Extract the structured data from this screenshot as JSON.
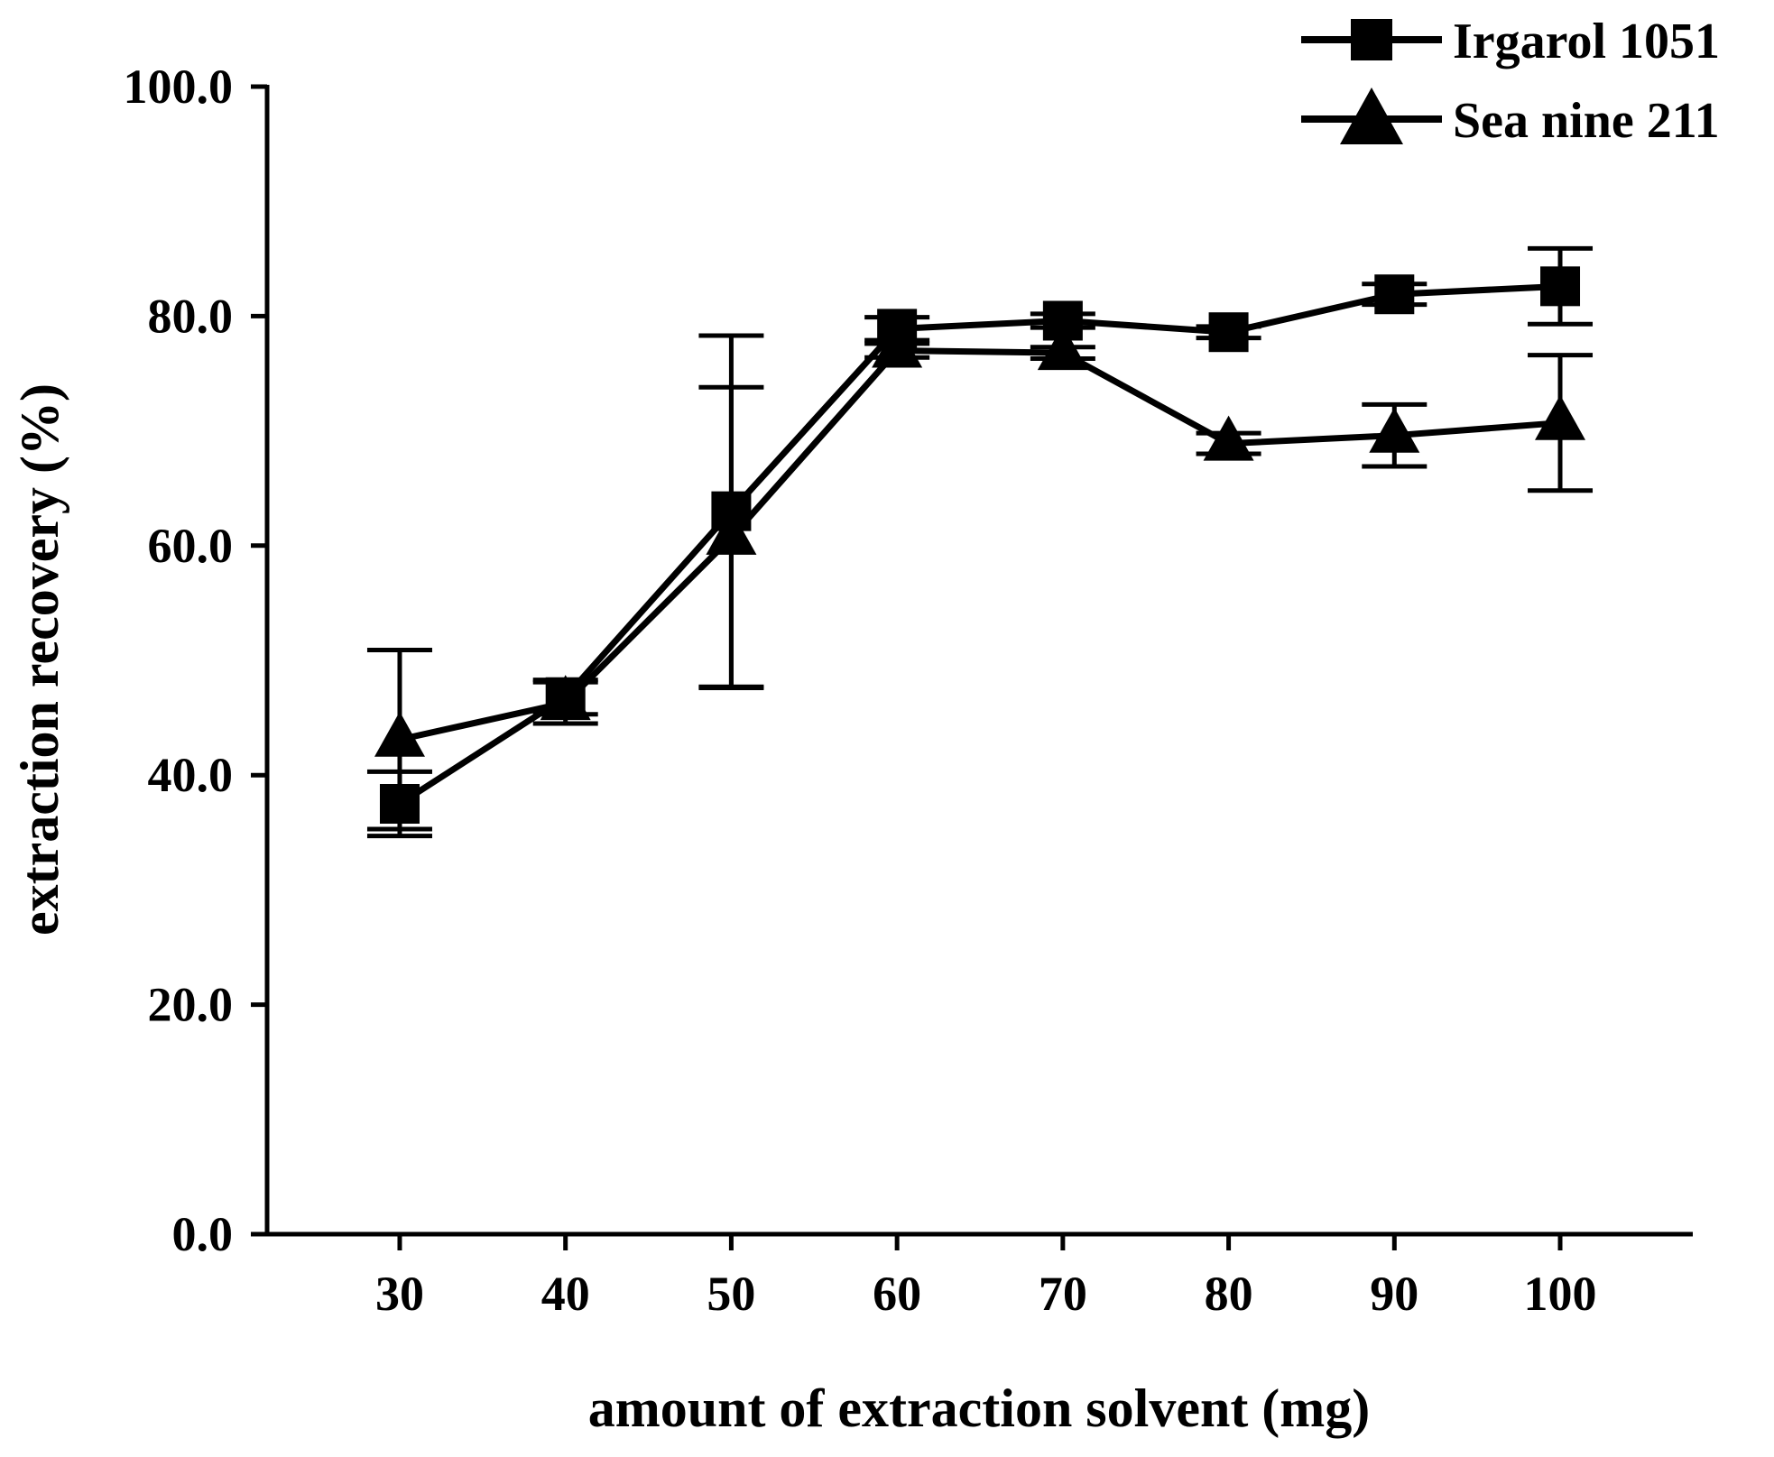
{
  "chart_data": {
    "type": "line",
    "title": "",
    "xlabel": "amount of extraction solvent (mg)",
    "ylabel": "extraction recovery (%)",
    "x": [
      30,
      40,
      50,
      60,
      70,
      80,
      90,
      100
    ],
    "x_tick_labels": [
      "30",
      "40",
      "50",
      "60",
      "70",
      "80",
      "90",
      "100"
    ],
    "y_ticks": [
      0,
      20,
      40,
      60,
      80,
      100
    ],
    "y_tick_labels": [
      "0.0",
      "20.0",
      "40.0",
      "60.0",
      "80.0",
      "100.0"
    ],
    "xlim": [
      22,
      108
    ],
    "ylim": [
      0,
      100
    ],
    "grid": false,
    "legend_position": "top-right",
    "series": [
      {
        "name": "Irgarol 1051",
        "marker": "square",
        "values": [
          37.5,
          46.8,
          63.0,
          78.9,
          79.6,
          78.6,
          81.9,
          82.6
        ],
        "errors": [
          2.8,
          1.5,
          15.3,
          1.0,
          0.6,
          0.5,
          0.9,
          3.3
        ]
      },
      {
        "name": "Sea nine 211",
        "marker": "triangle",
        "values": [
          43.1,
          46.3,
          60.7,
          77.0,
          76.8,
          68.9,
          69.6,
          70.7
        ],
        "errors": [
          7.8,
          1.8,
          13.1,
          0.6,
          0.5,
          0.9,
          2.7,
          5.9
        ]
      }
    ],
    "colors": {
      "line": "#000000",
      "background": "#ffffff"
    }
  }
}
